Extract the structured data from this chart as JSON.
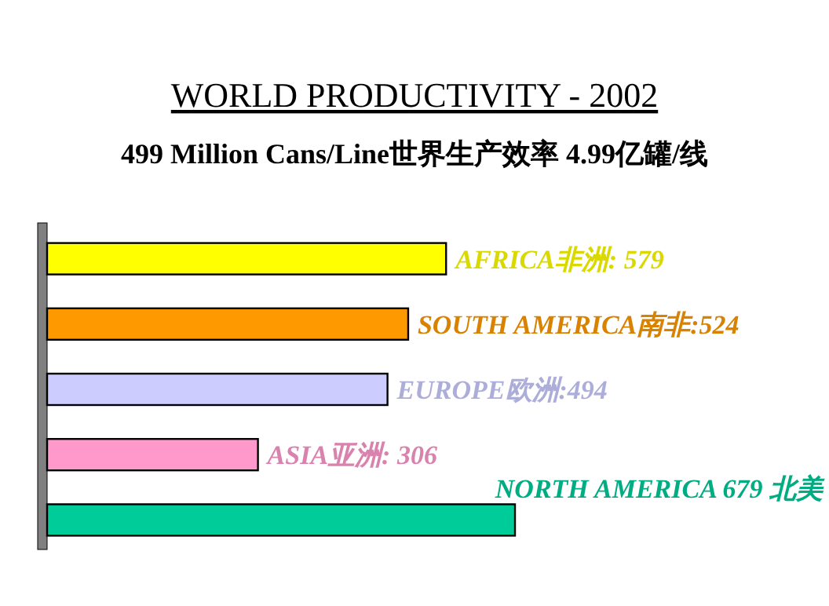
{
  "chart_data": {
    "type": "bar",
    "orientation": "horizontal",
    "title": "WORLD PRODUCTIVITY - 2002",
    "subtitle": "499 Million Cans/Line世界生产效率  4.99亿罐/线",
    "categories": [
      null,
      null,
      null,
      null,
      null
    ],
    "values": [
      579,
      524,
      494,
      306,
      679
    ],
    "value_labels": [
      "AFRICA非洲: 579",
      "SOUTH AMERICA南非:524",
      "EUROPE欧洲:494",
      "ASIA亚洲: 306",
      "NORTH AMERICA 679 北美"
    ],
    "colors": [
      "#ffff00",
      "#ff9900",
      "#ccccff",
      "#ff99cc",
      "#00cc99"
    ]
  }
}
